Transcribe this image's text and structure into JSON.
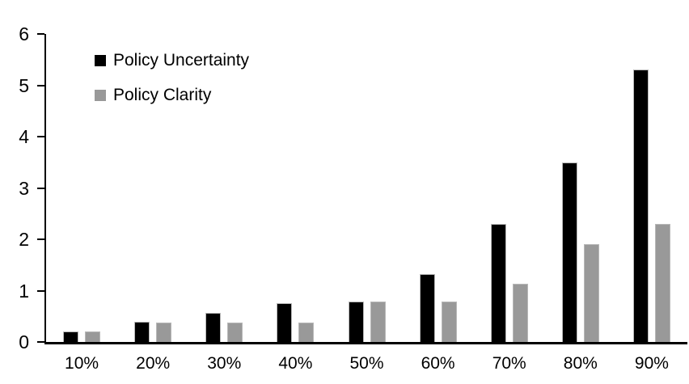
{
  "chart_data": {
    "type": "bar",
    "categories": [
      "10%",
      "20%",
      "30%",
      "40%",
      "50%",
      "60%",
      "70%",
      "80%",
      "90%"
    ],
    "series": [
      {
        "name": "Policy Uncertainty",
        "color": "#000000",
        "values": [
          0.2,
          0.4,
          0.57,
          0.76,
          0.78,
          1.33,
          2.3,
          3.5,
          5.3
        ]
      },
      {
        "name": "Policy Clarity",
        "color": "#999999",
        "values": [
          0.2,
          0.38,
          0.38,
          0.38,
          0.78,
          0.78,
          1.14,
          1.9,
          2.3
        ]
      }
    ],
    "title": "",
    "xlabel": "",
    "ylabel": "",
    "ylim": [
      0,
      6
    ],
    "yticks": [
      "0",
      "1",
      "2",
      "3",
      "4",
      "5",
      "6"
    ],
    "grid": false,
    "legend_position": "top-left",
    "axis_color": "#000000",
    "background_color": "#ffffff"
  }
}
